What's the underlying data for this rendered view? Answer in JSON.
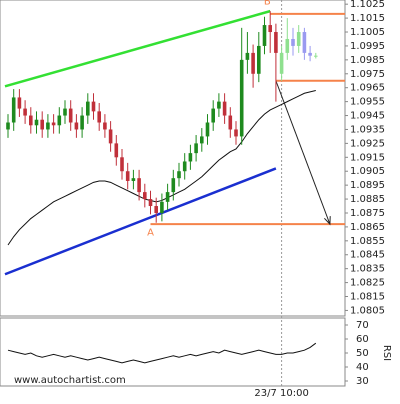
{
  "chart_data": {
    "type": "candlestick",
    "categories": [
      null,
      null,
      null,
      null,
      null,
      null,
      null,
      null,
      null,
      null,
      null,
      null,
      null,
      null,
      null,
      null,
      null,
      null,
      null,
      null,
      null,
      null,
      null,
      null,
      null,
      null,
      null,
      null,
      null,
      null,
      null,
      null,
      null,
      null,
      null,
      null,
      null,
      null,
      null,
      null,
      null,
      null,
      null,
      null,
      null,
      null,
      null,
      null,
      "23/7 10:00",
      null,
      null,
      null,
      null,
      null,
      null
    ],
    "candles": {
      "up_color": "#1e8a1e",
      "down_color": "#c0303a",
      "open": [
        1.0935,
        1.094,
        1.0958,
        1.095,
        1.0945,
        1.0938,
        1.0942,
        1.0935,
        1.094,
        1.0938,
        1.0945,
        1.095,
        1.094,
        1.0935,
        1.0945,
        1.0955,
        1.0948,
        1.094,
        1.0935,
        1.0925,
        1.0915,
        1.0905,
        1.0898,
        1.09,
        1.089,
        1.0885,
        1.088,
        1.0875,
        1.0883,
        1.089,
        1.09,
        1.0905,
        1.0912,
        1.0918,
        1.0925,
        1.093,
        1.094,
        1.095,
        1.0955,
        1.0945,
        1.0935,
        1.093,
        1.0985,
        1.099,
        1.0975,
        1.0995,
        1.101,
        1.1005
      ],
      "high": [
        1.0946,
        1.0964,
        1.0964,
        1.0956,
        1.0951,
        1.0948,
        1.0948,
        1.0946,
        1.0946,
        1.0951,
        1.0956,
        1.0956,
        1.0946,
        1.0951,
        1.0961,
        1.0961,
        1.0954,
        1.0946,
        1.0941,
        1.0931,
        1.0921,
        1.0911,
        1.0906,
        1.0906,
        1.0896,
        1.0891,
        1.0886,
        1.0889,
        1.0896,
        1.0906,
        1.0911,
        1.0918,
        1.0924,
        1.0931,
        1.0936,
        1.0946,
        1.0956,
        1.0961,
        1.0961,
        1.0951,
        1.0941,
        1.1008,
        1.1005,
        1.0996,
        1.1005,
        1.1016,
        1.102,
        1.1011
      ],
      "low": [
        1.0929,
        1.0934,
        1.0944,
        1.0939,
        1.0932,
        1.0932,
        1.0929,
        1.0929,
        1.0932,
        1.0932,
        1.0939,
        1.0934,
        1.0929,
        1.0929,
        1.0939,
        1.0942,
        1.0934,
        1.0929,
        1.0919,
        1.0909,
        1.0899,
        1.0892,
        1.0892,
        1.0884,
        1.0879,
        1.0874,
        1.0868,
        1.0869,
        1.0877,
        1.0884,
        1.0894,
        1.0899,
        1.0906,
        1.0912,
        1.0919,
        1.0924,
        1.0934,
        1.0944,
        1.0939,
        1.0929,
        1.0924,
        1.0924,
        1.0975,
        1.0965,
        1.0969,
        1.0989,
        1.099,
        1.0955
      ],
      "close": [
        1.094,
        1.0958,
        1.095,
        1.0945,
        1.0938,
        1.0942,
        1.0935,
        1.094,
        1.0938,
        1.0945,
        1.095,
        1.094,
        1.0935,
        1.0945,
        1.0955,
        1.0948,
        1.094,
        1.0935,
        1.0925,
        1.0915,
        1.0905,
        1.0898,
        1.09,
        1.089,
        1.0885,
        1.088,
        1.0875,
        1.0883,
        1.089,
        1.09,
        1.0905,
        1.0912,
        1.0918,
        1.0925,
        1.093,
        1.094,
        1.095,
        1.0955,
        1.0945,
        1.0935,
        1.093,
        1.0985,
        1.099,
        1.0975,
        1.0995,
        1.101,
        1.1005,
        1.099
      ]
    },
    "projection": {
      "up_color": "#8fe08f",
      "down_color": "#9a9af0",
      "open": [
        1.0975,
        1.099,
        1.1,
        1.0995,
        1.1005,
        1.099,
        1.0988
      ],
      "high": [
        1.0995,
        1.1015,
        1.1008,
        1.101,
        1.1008,
        1.0995,
        1.099
      ],
      "low": [
        1.097,
        1.0985,
        1.0988,
        1.099,
        1.0985,
        1.0984,
        1.0986
      ],
      "close": [
        1.099,
        1.1,
        1.0995,
        1.1005,
        1.099,
        1.0988,
        1.0988
      ]
    },
    "ma": {
      "color": "#111111",
      "values": [
        1.0852,
        1.0858,
        1.0863,
        1.0867,
        1.0871,
        1.0874,
        1.0877,
        1.088,
        1.0883,
        1.0885,
        1.0887,
        1.0889,
        1.0891,
        1.0893,
        1.0895,
        1.0897,
        1.0898,
        1.0898,
        1.0897,
        1.0895,
        1.0893,
        1.0891,
        1.0889,
        1.0887,
        1.0885,
        1.0884,
        1.0883,
        1.0884,
        1.0886,
        1.0888,
        1.089,
        1.0892,
        1.0895,
        1.0898,
        1.0901,
        1.0905,
        1.0909,
        1.0913,
        1.0916,
        1.0919,
        1.0921,
        1.0926,
        1.0932,
        1.0937,
        1.0942,
        1.0946,
        1.0949,
        1.0951,
        1.0953,
        1.0955,
        1.0957,
        1.0959,
        1.0961,
        1.0962,
        1.0963
      ]
    },
    "ylim": [
      1.0801,
      1.1028
    ],
    "yticks": [
      1.1025,
      1.1015,
      1.1005,
      1.0995,
      1.0985,
      1.0975,
      1.0965,
      1.0955,
      1.0945,
      1.0935,
      1.0925,
      1.0915,
      1.0905,
      1.0895,
      1.0885,
      1.0875,
      1.0865,
      1.0855,
      1.0845,
      1.0835,
      1.0825,
      1.0815,
      1.0805
    ],
    "trend_lines": [
      {
        "color": "#33e033",
        "from": [
          0,
          1.0966
        ],
        "to": [
          46,
          1.102
        ]
      },
      {
        "color": "#1a2fd0",
        "from": [
          0,
          1.0831
        ],
        "to": [
          47,
          1.0907
        ]
      }
    ],
    "levels": [
      {
        "color": "#f5824a",
        "value": 1.1018,
        "from": 46
      },
      {
        "color": "#f5824a",
        "value": 1.097,
        "from": 47
      },
      {
        "color": "#f5824a",
        "value": 1.0867,
        "from": 25
      }
    ],
    "arrow": {
      "color": "#222222",
      "from": [
        47,
        1.097
      ],
      "to": [
        57,
        1.0867
      ]
    },
    "points": [
      {
        "label": "A",
        "at": [
          25,
          1.0861
        ],
        "color": "#f5824a"
      },
      {
        "label": "B",
        "at": [
          45.5,
          1.1027
        ],
        "color": "#f5824a"
      }
    ],
    "rsi": {
      "label": "RSI",
      "color": "#111111",
      "ylim": [
        75,
        25
      ],
      "yticks": [
        70,
        60,
        50,
        40,
        30
      ],
      "values": [
        52,
        51,
        50,
        49,
        50,
        48,
        47,
        48,
        49,
        48,
        47,
        48,
        47,
        46,
        45,
        46,
        47,
        46,
        45,
        44,
        43,
        44,
        45,
        44,
        43,
        44,
        45,
        46,
        47,
        48,
        47,
        48,
        49,
        48,
        49,
        50,
        51,
        50,
        52,
        51,
        50,
        49,
        50,
        51,
        52,
        51,
        50,
        49,
        49,
        50,
        50,
        51,
        52,
        54,
        57
      ]
    },
    "watermark": "www.autochartist.com"
  }
}
